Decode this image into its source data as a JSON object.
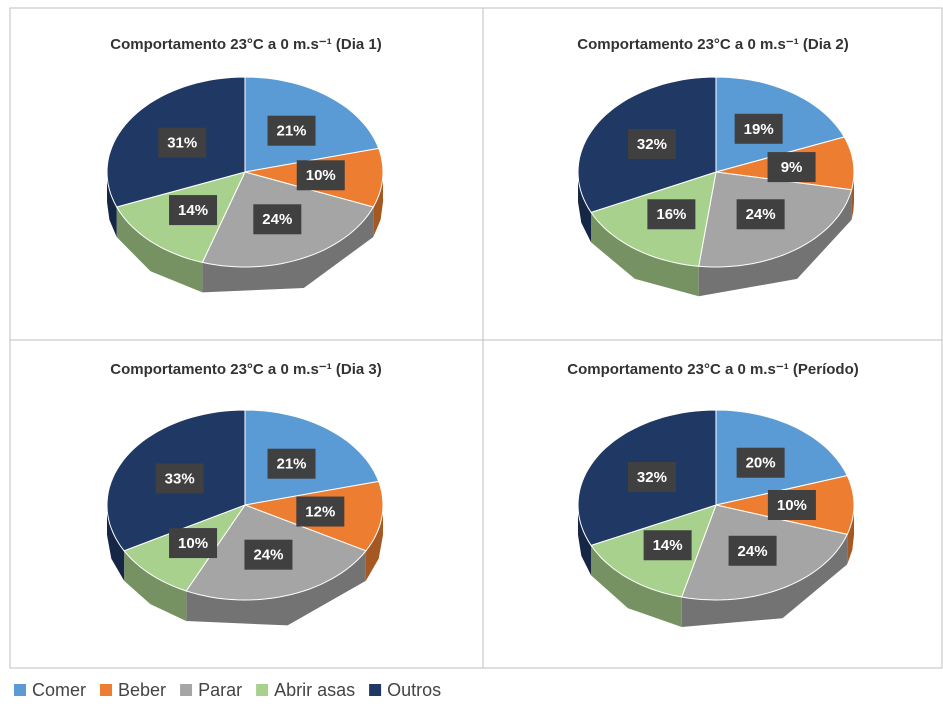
{
  "chart_data": [
    {
      "type": "pie",
      "title": "Comportamento 23°C a 0 m.s⁻¹ (Dia 1)",
      "categories": [
        "Comer",
        "Beber",
        "Parar",
        "Abrir asas",
        "Outros"
      ],
      "colors": [
        "#5b9bd5",
        "#ed7d31",
        "#a5a5a5",
        "#a9d18e",
        "#203864"
      ],
      "values": [
        21,
        10,
        24,
        14,
        31
      ],
      "value_labels": [
        "21%",
        "10%",
        "24%",
        "14%",
        "31%"
      ]
    },
    {
      "type": "pie",
      "title": "Comportamento 23°C a 0 m.s⁻¹ (Dia 2)",
      "categories": [
        "Comer",
        "Beber",
        "Parar",
        "Abrir asas",
        "Outros"
      ],
      "colors": [
        "#5b9bd5",
        "#ed7d31",
        "#a5a5a5",
        "#a9d18e",
        "#203864"
      ],
      "values": [
        19,
        9,
        24,
        16,
        32
      ],
      "value_labels": [
        "19%",
        "9%",
        "24%",
        "16%",
        "32%"
      ]
    },
    {
      "type": "pie",
      "title": "Comportamento 23°C a 0 m.s⁻¹ (Dia 3)",
      "categories": [
        "Comer",
        "Beber",
        "Parar",
        "Abrir asas",
        "Outros"
      ],
      "colors": [
        "#5b9bd5",
        "#ed7d31",
        "#a5a5a5",
        "#a9d18e",
        "#203864"
      ],
      "values": [
        21,
        12,
        24,
        10,
        33
      ],
      "value_labels": [
        "21%",
        "12%",
        "24%",
        "10%",
        "33%"
      ]
    },
    {
      "type": "pie",
      "title": "Comportamento 23°C a 0 m.s⁻¹ (Período)",
      "categories": [
        "Comer",
        "Beber",
        "Parar",
        "Abrir asas",
        "Outros"
      ],
      "colors": [
        "#5b9bd5",
        "#ed7d31",
        "#a5a5a5",
        "#a9d18e",
        "#203864"
      ],
      "values": [
        20,
        10,
        24,
        14,
        32
      ],
      "value_labels": [
        "20%",
        "10%",
        "24%",
        "14%",
        "32%"
      ]
    }
  ]
}
